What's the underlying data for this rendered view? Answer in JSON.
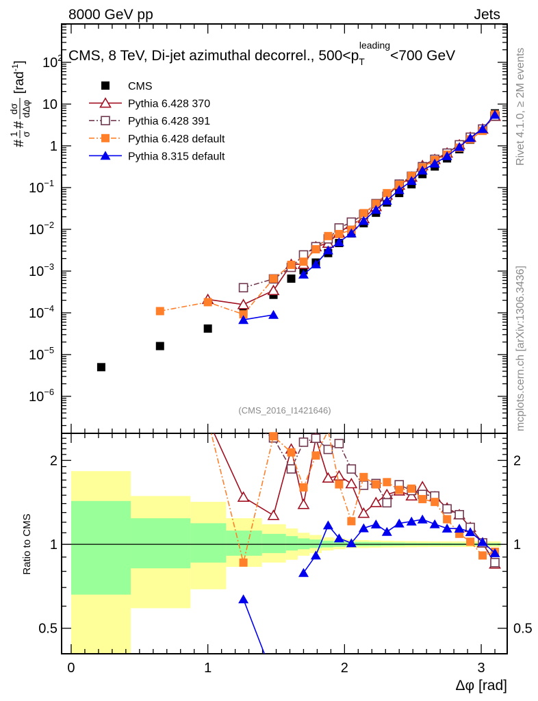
{
  "header": {
    "left": "8000 GeV pp",
    "right": "Jets"
  },
  "side_labels": {
    "rivet": "Rivet 4.1.0, ≥ 2M events",
    "mcplots": "mcplots.cern.ch [arXiv:1306.3436]"
  },
  "analysis_id": "(CMS_2016_I1421646)",
  "chart_data": [
    {
      "type": "line",
      "title": {
        "main": "CMS, 8 TeV, Di-jet azimuthal decorrel., 500<p",
        "sub": "T",
        "sup": "leading",
        "tail": "<700 GeV"
      },
      "xlabel": "Δφ [rad]",
      "ylabel": {
        "a": "#",
        "num1": "1",
        "den1": "σ",
        "b": "#",
        "num2": "dσ",
        "den2": "dΔφ",
        "unit": "[rad",
        "unit_sup": "-1",
        "unit_end": "]"
      },
      "yscale": "log",
      "xlim": [
        -0.07,
        3.19
      ],
      "ylim": [
        1.3e-07,
        830
      ],
      "legend_position": "top-left",
      "xticks": [
        "0",
        "1",
        "2",
        "3"
      ],
      "yticks": [
        {
          "value": 1e-06,
          "base": "10",
          "exp": "−6"
        },
        {
          "value": 1e-05,
          "base": "10",
          "exp": "−5"
        },
        {
          "value": 0.0001,
          "base": "10",
          "exp": "−4"
        },
        {
          "value": 0.001,
          "base": "10",
          "exp": "−3"
        },
        {
          "value": 0.01,
          "base": "10",
          "exp": "−2"
        },
        {
          "value": 0.1,
          "base": "10",
          "exp": "−1"
        },
        {
          "value": 1,
          "base": "1",
          "exp": ""
        },
        {
          "value": 10,
          "base": "10",
          "exp": ""
        },
        {
          "value": 100,
          "base": "10",
          "exp": "2"
        }
      ],
      "x": [
        0.22,
        0.65,
        1.0,
        1.26,
        1.48,
        1.61,
        1.7,
        1.79,
        1.88,
        1.96,
        2.05,
        2.14,
        2.23,
        2.31,
        2.4,
        2.49,
        2.57,
        2.66,
        2.75,
        2.84,
        2.92,
        3.01,
        3.1
      ],
      "series": [
        {
          "name": "CMS",
          "color": "#000000",
          "marker": "filled-square",
          "line": "none",
          "values": [
            5e-06,
            1.6e-05,
            4.2e-05,
            0.000107,
            0.00027,
            0.00066,
            0.00105,
            0.0016,
            0.0027,
            0.0047,
            0.008,
            0.014,
            0.025,
            0.044,
            0.074,
            0.12,
            0.21,
            0.32,
            0.5,
            0.83,
            1.4,
            2.5,
            6.0
          ]
        },
        {
          "name": "Pythia 6.428 370",
          "color": "#a01020",
          "marker": "open-triangle",
          "line": "solid",
          "values": [
            null,
            null,
            0.00021,
            0.000158,
            0.000343,
            0.00145,
            0.00146,
            0.00384,
            0.00467,
            0.00827,
            0.0132,
            0.0181,
            0.0353,
            0.0664,
            0.115,
            0.179,
            0.338,
            0.474,
            0.675,
            1.06,
            1.61,
            2.53,
            5.1
          ]
        },
        {
          "name": "Pythia 6.428 391",
          "color": "#70384f",
          "marker": "open-square",
          "line": "dashdot",
          "values": [
            null,
            null,
            null,
            0.0004,
            0.00065,
            0.00123,
            0.00244,
            0.00384,
            0.00591,
            0.0108,
            0.0149,
            0.0228,
            0.0413,
            0.062,
            0.121,
            0.187,
            0.317,
            0.477,
            0.67,
            1.06,
            1.61,
            2.53,
            5.16
          ]
        },
        {
          "name": "Pythia 6.428 default",
          "color": "#ff7f2a",
          "marker": "filled-square",
          "line": "dashdot",
          "values": [
            null,
            0.00011,
            0.00018,
            9.2e-05,
            0.000659,
            0.00141,
            0.00168,
            0.00333,
            0.0069,
            0.00771,
            0.00968,
            0.0244,
            0.041,
            0.0735,
            0.116,
            0.19,
            0.305,
            0.454,
            0.615,
            0.905,
            1.43,
            2.28,
            5.64
          ]
        },
        {
          "name": "Pythia 8.315 default",
          "color": "#0000ee",
          "marker": "filled-triangle",
          "line": "solid",
          "values": [
            null,
            null,
            null,
            6.8e-05,
            9e-05,
            null,
            0.00083,
            0.00146,
            0.00316,
            0.00494,
            0.00808,
            0.016,
            0.0295,
            0.0488,
            0.088,
            0.145,
            0.258,
            0.378,
            0.57,
            0.946,
            1.55,
            2.55,
            5.58
          ]
        }
      ]
    },
    {
      "type": "line",
      "title": "ratio",
      "ylabel": "Ratio to CMS",
      "yscale": "log",
      "ylim": [
        0.405,
        2.5
      ],
      "yticks": [
        {
          "value": 0.5,
          "label": "0.5"
        },
        {
          "value": 1,
          "label": "1"
        },
        {
          "value": 2,
          "label": "2"
        }
      ],
      "reference": 1,
      "uncertainty_bands": {
        "bin_edges": [
          0,
          0.436,
          0.873,
          1.134,
          1.396,
          1.571,
          1.658,
          1.745,
          1.833,
          1.92,
          2.007,
          2.094,
          2.182,
          2.269,
          2.356,
          2.443,
          2.531,
          2.618,
          2.705,
          2.793,
          2.88,
          2.967,
          3.054,
          3.142
        ],
        "inner_color": "#99ff99",
        "outer_color": "#ffff99",
        "inner": [
          [
            0.66,
            1.43
          ],
          [
            0.82,
            1.24
          ],
          [
            0.86,
            1.19
          ],
          [
            0.91,
            1.12
          ],
          [
            0.93,
            1.09
          ],
          [
            0.95,
            1.07
          ],
          [
            0.96,
            1.05
          ],
          [
            0.97,
            1.04
          ],
          [
            0.975,
            1.03
          ],
          [
            0.98,
            1.025
          ],
          [
            0.985,
            1.02
          ],
          [
            0.985,
            1.02
          ],
          [
            0.985,
            1.018
          ],
          [
            0.987,
            1.016
          ],
          [
            0.988,
            1.015
          ],
          [
            0.99,
            1.013
          ],
          [
            0.99,
            1.012
          ],
          [
            0.99,
            1.012
          ],
          [
            0.99,
            1.011
          ],
          [
            0.99,
            1.01
          ],
          [
            0.99,
            1.01
          ],
          [
            0.99,
            1.01
          ],
          [
            0.99,
            1.01
          ]
        ],
        "outer": [
          [
            0.4,
            1.83
          ],
          [
            0.59,
            1.49
          ],
          [
            0.69,
            1.42
          ],
          [
            0.83,
            1.24
          ],
          [
            0.86,
            1.18
          ],
          [
            0.88,
            1.14
          ],
          [
            0.91,
            1.1
          ],
          [
            0.93,
            1.08
          ],
          [
            0.95,
            1.06
          ],
          [
            0.96,
            1.05
          ],
          [
            0.97,
            1.04
          ],
          [
            0.97,
            1.035
          ],
          [
            0.972,
            1.032
          ],
          [
            0.974,
            1.03
          ],
          [
            0.975,
            1.028
          ],
          [
            0.976,
            1.027
          ],
          [
            0.977,
            1.026
          ],
          [
            0.978,
            1.025
          ],
          [
            0.978,
            1.025
          ],
          [
            0.978,
            1.025
          ],
          [
            0.978,
            1.025
          ],
          [
            0.978,
            1.025
          ],
          [
            0.978,
            1.025
          ]
        ]
      }
    }
  ]
}
